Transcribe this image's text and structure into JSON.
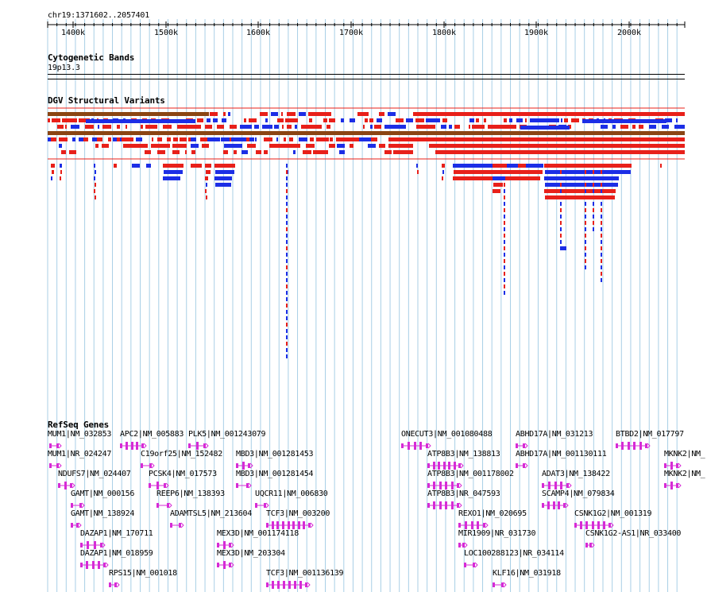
{
  "ruler": {
    "region": "chr19:1371602..2057401",
    "ticks": [
      "1400k",
      "1500k",
      "1600k",
      "1700k",
      "1800k",
      "1900k",
      "2000k"
    ]
  },
  "tracks": {
    "cytoband_title": "Cytogenetic Bands",
    "cytoband_name": "19p13.3",
    "dgv_title": "DGV Structural Variants",
    "refseq_title": "RefSeq Genes"
  },
  "colors": {
    "gridline": "#a8cfe6",
    "gain": "#e8201a",
    "loss": "#1c2ee6",
    "complex": "#8b4513",
    "gene": "#d62bd6"
  },
  "genes": [
    {
      "label": "MUM1|NM_032853"
    },
    {
      "label": "MUM1|NR_024247"
    },
    {
      "label": "NDUFS7|NM_024407"
    },
    {
      "label": "GAMT|NM_000156"
    },
    {
      "label": "GAMT|NM_138924"
    },
    {
      "label": "DAZAP1|NM_170711"
    },
    {
      "label": "DAZAP1|NM_018959"
    },
    {
      "label": "RPS15|NM_001018"
    },
    {
      "label": "APC2|NM_005883"
    },
    {
      "label": "C19orf25|NM_152482"
    },
    {
      "label": "PCSK4|NM_017573"
    },
    {
      "label": "REEP6|NM_138393"
    },
    {
      "label": "ADAMTSL5|NM_213604"
    },
    {
      "label": "PLK5|NM_001243079"
    },
    {
      "label": "MBD3|NM_001281453"
    },
    {
      "label": "MBD3|NM_001281454"
    },
    {
      "label": "UQCR11|NM_006830"
    },
    {
      "label": "TCF3|NM_003200"
    },
    {
      "label": "MEX3D|NM_001174118"
    },
    {
      "label": "MEX3D|NM_203304"
    },
    {
      "label": "TCF3|NM_001136139"
    },
    {
      "label": "ONECUT3|NM_001080488"
    },
    {
      "label": "ATP8B3|NM_138813"
    },
    {
      "label": "ATP8B3|NM_001178002"
    },
    {
      "label": "ATP8B3|NR_047593"
    },
    {
      "label": "REXO1|NM_020695"
    },
    {
      "label": "MIR1909|NR_031730"
    },
    {
      "label": "LOC100288123|NR_034114"
    },
    {
      "label": "KLF16|NM_031918"
    },
    {
      "label": "ABHD17A|NM_031213"
    },
    {
      "label": "ABHD17A|NM_001130111"
    },
    {
      "label": "ADAT3|NM_138422"
    },
    {
      "label": "SCAMP4|NM_079834"
    },
    {
      "label": "CSNK1G2|NM_001319"
    },
    {
      "label": "CSNK1G2-AS1|NR_033400"
    },
    {
      "label": "BTBD2|NM_017797"
    },
    {
      "label": "MKNK2|NM_"
    },
    {
      "label": "MKNK2|NM_"
    }
  ]
}
